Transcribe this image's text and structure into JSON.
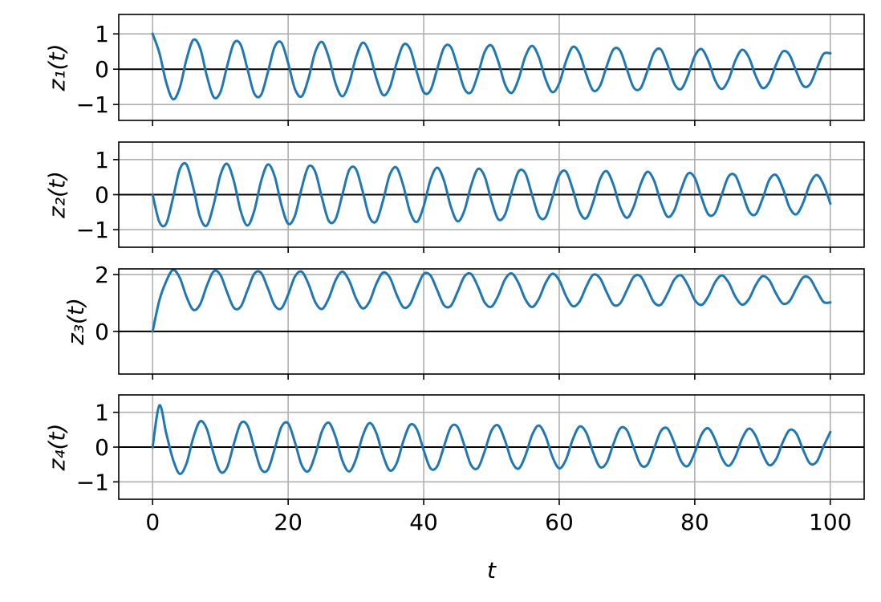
{
  "chart_data": [
    {
      "type": "line",
      "ylabel": "z₁(t)",
      "color": "#1f77b4",
      "grid": true,
      "x": [
        0,
        1,
        2,
        3,
        4,
        5,
        6,
        7,
        8,
        9,
        10,
        11,
        12,
        13,
        14,
        15,
        16,
        17,
        18,
        19,
        20,
        21,
        22,
        23,
        24,
        25,
        26,
        27,
        28,
        29,
        30,
        31,
        32,
        33,
        34,
        35,
        36,
        37,
        38,
        39,
        40,
        41,
        42,
        43,
        44,
        45,
        46,
        47,
        48,
        49,
        50,
        51,
        52,
        53,
        54,
        55,
        56,
        57,
        58,
        59,
        60,
        61,
        62,
        63,
        64,
        65,
        66,
        67,
        68,
        69,
        70,
        71,
        72,
        73,
        74,
        75,
        76,
        77,
        78,
        79,
        80,
        81,
        82,
        83,
        84,
        85,
        86,
        87,
        88,
        89,
        90,
        91,
        92,
        93,
        94,
        95,
        96,
        97,
        98,
        99,
        100
      ],
      "values": [
        1.0,
        0.46,
        -0.37,
        -0.85,
        -0.53,
        0.28,
        0.83,
        0.6,
        -0.19,
        -0.79,
        -0.65,
        0.09,
        0.74,
        0.69,
        0.0,
        -0.69,
        -0.73,
        -0.09,
        0.63,
        0.75,
        0.17,
        -0.56,
        -0.77,
        -0.26,
        0.49,
        0.77,
        0.33,
        -0.41,
        -0.77,
        -0.4,
        0.33,
        0.75,
        0.46,
        -0.25,
        -0.73,
        -0.52,
        0.17,
        0.69,
        0.57,
        -0.09,
        -0.65,
        -0.6,
        0.01,
        0.61,
        0.63,
        0.07,
        -0.55,
        -0.65,
        -0.15,
        0.49,
        0.67,
        0.22,
        -0.43,
        -0.67,
        -0.28,
        0.36,
        0.66,
        0.34,
        -0.29,
        -0.65,
        -0.4,
        0.22,
        0.63,
        0.44,
        -0.15,
        -0.6,
        -0.48,
        0.08,
        0.56,
        0.52,
        -0.01,
        -0.52,
        -0.54,
        -0.06,
        0.47,
        0.56,
        0.12,
        -0.42,
        -0.56,
        -0.18,
        0.37,
        0.57,
        0.24,
        -0.31,
        -0.56,
        -0.29,
        0.25,
        0.55,
        0.33,
        -0.19,
        -0.53,
        -0.37,
        0.13,
        0.5,
        0.4,
        -0.07,
        -0.47,
        -0.43,
        0.01,
        0.43,
        0.45
      ],
      "xlim": [
        -5,
        105
      ],
      "xticks": [
        0,
        20,
        40,
        60,
        80,
        100
      ],
      "ylim": [
        -1.45,
        1.55
      ],
      "yticks": [
        {
          "value": -1,
          "label": "−1"
        },
        0,
        1
      ]
    },
    {
      "type": "line",
      "ylabel": "z₂(t)",
      "color": "#1f77b4",
      "grid": true,
      "x": [
        0,
        1,
        2,
        3,
        4,
        5,
        6,
        7,
        8,
        9,
        10,
        11,
        12,
        13,
        14,
        15,
        16,
        17,
        18,
        19,
        20,
        21,
        22,
        23,
        24,
        25,
        26,
        27,
        28,
        29,
        30,
        31,
        32,
        33,
        34,
        35,
        36,
        37,
        38,
        39,
        40,
        41,
        42,
        43,
        44,
        45,
        46,
        47,
        48,
        49,
        50,
        51,
        52,
        53,
        54,
        55,
        56,
        57,
        58,
        59,
        60,
        61,
        62,
        63,
        64,
        65,
        66,
        67,
        68,
        69,
        70,
        71,
        72,
        73,
        74,
        75,
        76,
        77,
        78,
        79,
        80,
        81,
        82,
        83,
        84,
        85,
        86,
        87,
        88,
        89,
        90,
        91,
        92,
        93,
        94,
        95,
        96,
        97,
        98,
        99,
        100
      ],
      "values": [
        0,
        -0.78,
        -0.83,
        -0.1,
        0.72,
        0.86,
        0.2,
        -0.64,
        -0.88,
        -0.29,
        0.56,
        0.88,
        0.38,
        -0.47,
        -0.88,
        -0.46,
        0.38,
        0.86,
        0.53,
        -0.29,
        -0.83,
        -0.6,
        0.19,
        0.8,
        0.65,
        -0.1,
        -0.75,
        -0.7,
        0.0,
        0.7,
        0.73,
        0.09,
        -0.64,
        -0.76,
        -0.17,
        0.57,
        0.77,
        0.25,
        -0.5,
        -0.78,
        -0.33,
        0.42,
        0.77,
        0.4,
        -0.34,
        -0.76,
        -0.46,
        0.26,
        0.73,
        0.52,
        -0.17,
        -0.7,
        -0.57,
        0.09,
        0.66,
        0.61,
        -0.01,
        -0.61,
        -0.64,
        -0.07,
        0.55,
        0.66,
        0.15,
        -0.49,
        -0.67,
        -0.22,
        0.43,
        0.67,
        0.28,
        -0.36,
        -0.66,
        -0.34,
        0.29,
        0.65,
        0.4,
        -0.22,
        -0.63,
        -0.44,
        0.15,
        0.6,
        0.48,
        -0.08,
        -0.56,
        -0.52,
        0.01,
        0.52,
        0.54,
        0.06,
        -0.47,
        -0.56,
        -0.12,
        0.42,
        0.56,
        0.18,
        -0.37,
        -0.56,
        -0.23,
        0.31,
        0.56,
        0.29,
        -0.25
      ],
      "xlim": [
        -5,
        105
      ],
      "xticks": [
        0,
        20,
        40,
        60,
        80,
        100
      ],
      "ylim": [
        -1.5,
        1.5
      ],
      "yticks": [
        {
          "value": -1,
          "label": "−1"
        },
        0,
        1
      ]
    },
    {
      "type": "line",
      "ylabel": "z₃(t)",
      "color": "#1f77b4",
      "grid": true,
      "x": [
        0,
        1,
        2,
        3,
        4,
        5,
        6,
        7,
        8,
        9,
        10,
        11,
        12,
        13,
        14,
        15,
        16,
        17,
        18,
        19,
        20,
        21,
        22,
        23,
        24,
        25,
        26,
        27,
        28,
        29,
        30,
        31,
        32,
        33,
        34,
        35,
        36,
        37,
        38,
        39,
        40,
        41,
        42,
        43,
        44,
        45,
        46,
        47,
        48,
        49,
        50,
        51,
        52,
        53,
        54,
        55,
        56,
        57,
        58,
        59,
        60,
        61,
        62,
        63,
        64,
        65,
        66,
        67,
        68,
        69,
        70,
        71,
        72,
        73,
        74,
        75,
        76,
        77,
        78,
        79,
        80,
        81,
        82,
        83,
        84,
        85,
        86,
        87,
        88,
        89,
        90,
        91,
        92,
        93,
        94,
        95,
        96,
        97,
        98,
        99,
        100
      ],
      "values": [
        0,
        1.1,
        1.76,
        2.16,
        1.89,
        1.22,
        0.76,
        0.95,
        1.61,
        2.11,
        1.99,
        1.37,
        0.83,
        0.87,
        1.45,
        2.03,
        2.06,
        1.52,
        0.92,
        0.81,
        1.3,
        1.93,
        2.1,
        1.67,
        1.03,
        0.79,
        1.17,
        1.8,
        2.1,
        1.79,
        1.17,
        0.81,
        1.05,
        1.67,
        2.07,
        1.9,
        1.3,
        0.85,
        0.96,
        1.53,
        2.02,
        1.97,
        1.45,
        0.92,
        0.9,
        1.39,
        1.93,
        2.02,
        1.58,
        1.02,
        0.87,
        1.26,
        1.83,
        2.04,
        1.7,
        1.13,
        0.86,
        1.15,
        1.71,
        2.03,
        1.8,
        1.25,
        0.89,
        1.05,
        1.58,
        1.99,
        1.88,
        1.38,
        0.94,
        0.99,
        1.46,
        1.92,
        1.94,
        1.5,
        1.02,
        0.94,
        1.34,
        1.83,
        1.97,
        1.62,
        1.11,
        0.93,
        1.23,
        1.73,
        1.97,
        1.72,
        1.22,
        0.94,
        1.14,
        1.63,
        1.94,
        1.8,
        1.33,
        0.98,
        1.07,
        1.51,
        1.9,
        1.86,
        1.44,
        1.04,
        1.02
      ],
      "xlim": [
        -5,
        105
      ],
      "xticks": [
        0,
        20,
        40,
        60,
        80,
        100
      ],
      "ylim": [
        -1.5,
        2.2
      ],
      "yticks": [
        0,
        2
      ]
    },
    {
      "type": "line",
      "ylabel": "z₄(t)",
      "xlabel": "t",
      "color": "#1f77b4",
      "grid": true,
      "x": [
        0,
        1,
        2,
        3,
        4,
        5,
        6,
        7,
        8,
        9,
        10,
        11,
        12,
        13,
        14,
        15,
        16,
        17,
        18,
        19,
        20,
        21,
        22,
        23,
        24,
        25,
        26,
        27,
        28,
        29,
        30,
        31,
        32,
        33,
        34,
        35,
        36,
        37,
        38,
        39,
        40,
        41,
        42,
        43,
        44,
        45,
        46,
        47,
        48,
        49,
        50,
        51,
        52,
        53,
        54,
        55,
        56,
        57,
        58,
        59,
        60,
        61,
        62,
        63,
        64,
        65,
        66,
        67,
        68,
        69,
        70,
        71,
        72,
        73,
        74,
        75,
        76,
        77,
        78,
        79,
        80,
        81,
        82,
        83,
        84,
        85,
        86,
        87,
        88,
        89,
        90,
        91,
        92,
        93,
        94,
        95,
        96,
        97,
        98,
        99,
        100
      ],
      "values": [
        0,
        1.2,
        0.4,
        -0.35,
        -0.77,
        -0.47,
        0.27,
        0.74,
        0.52,
        -0.19,
        -0.71,
        -0.58,
        0.1,
        0.68,
        0.62,
        -0.02,
        -0.63,
        -0.65,
        -0.06,
        0.58,
        0.68,
        0.14,
        -0.52,
        -0.69,
        -0.22,
        0.46,
        0.7,
        0.29,
        -0.39,
        -0.7,
        -0.35,
        0.32,
        0.69,
        0.41,
        -0.24,
        -0.67,
        -0.47,
        0.17,
        0.64,
        0.51,
        -0.09,
        -0.61,
        -0.55,
        0.02,
        0.57,
        0.58,
        0.05,
        -0.52,
        -0.6,
        -0.12,
        0.47,
        0.62,
        0.19,
        -0.41,
        -0.62,
        -0.25,
        0.35,
        0.62,
        0.31,
        -0.28,
        -0.61,
        -0.36,
        0.22,
        0.59,
        0.41,
        -0.15,
        -0.57,
        -0.45,
        0.09,
        0.54,
        0.48,
        -0.02,
        -0.5,
        -0.51,
        -0.04,
        0.46,
        0.53,
        0.11,
        -0.41,
        -0.54,
        -0.16,
        0.36,
        0.54,
        0.22,
        -0.31,
        -0.54,
        -0.27,
        0.25,
        0.53,
        0.32,
        -0.19,
        -0.52,
        -0.35,
        0.14,
        0.49,
        0.39,
        -0.08,
        -0.47,
        -0.42,
        0.02,
        0.43
      ],
      "xlim": [
        -5,
        105
      ],
      "xticks": [
        0,
        20,
        40,
        60,
        80,
        100
      ],
      "ylim": [
        -1.5,
        1.5
      ],
      "yticks": [
        {
          "value": -1,
          "label": "−1"
        },
        0,
        1
      ]
    }
  ]
}
